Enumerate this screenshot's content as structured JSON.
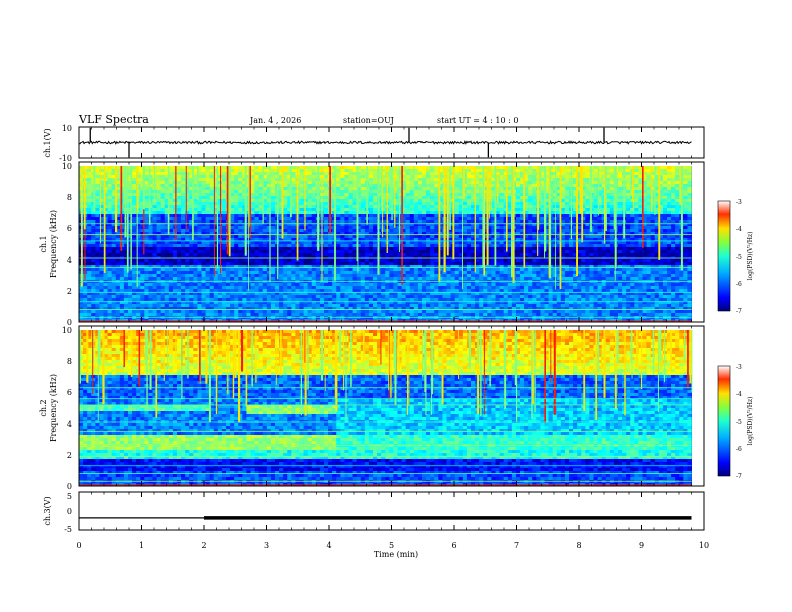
{
  "header": {
    "title": "VLF Spectra",
    "date": "Jan. 4 , 2026",
    "station": "station=OUJ",
    "start": "start UT =  4 : 10 : 0"
  },
  "chart_data": {
    "type": "heatmap",
    "title": "VLF Spectra",
    "xlabel": "Time (min)",
    "xlim": [
      0,
      10
    ],
    "x_ticks": [
      "0",
      "1",
      "2",
      "3",
      "4",
      "5",
      "6",
      "7",
      "8",
      "9",
      "10"
    ],
    "data_end_min": 9.8,
    "panels": [
      {
        "name": "ch1-waveform",
        "type": "line",
        "ylabel": "ch.1(V)",
        "ylim": [
          -10,
          10
        ],
        "y_ticks": [
          "10",
          "-10"
        ],
        "baseline": 0,
        "spikes_min": [
          0.18,
          0.8,
          5.28,
          6.55,
          8.4
        ]
      },
      {
        "name": "ch1-spectrogram",
        "type": "heatmap",
        "ylabel_line1": "ch.1",
        "ylabel_line2": "Frequency (kHz)",
        "ylim_khz": [
          0,
          10
        ],
        "y_ticks": [
          "0",
          "2",
          "4",
          "6",
          "8",
          "10"
        ],
        "colorbar_label": "log(PSD)(V²/Hz)",
        "colorbar_ticks": [
          "-3",
          "-4",
          "-5",
          "-6",
          "-7"
        ],
        "colorbar_range": [
          -7,
          -3
        ]
      },
      {
        "name": "ch2-spectrogram",
        "type": "heatmap",
        "ylabel_line1": "ch.2",
        "ylabel_line2": "Frequency (kHz)",
        "ylim_khz": [
          0,
          10
        ],
        "y_ticks": [
          "0",
          "2",
          "4",
          "6",
          "8",
          "10"
        ],
        "colorbar_label": "log(PSD)(V²/Hz)",
        "colorbar_ticks": [
          "-3",
          "-4",
          "-5",
          "-6",
          "-7"
        ],
        "colorbar_range": [
          -7,
          -3
        ],
        "bands": [
          {
            "t0": 0,
            "t1": 2.1,
            "f0": 4.8,
            "f1": 5.2,
            "level": -5.2
          },
          {
            "t0": 2.7,
            "t1": 4.1,
            "f0": 4.6,
            "f1": 5.2,
            "level": -4.9
          },
          {
            "t0": 0,
            "t1": 4.1,
            "f0": 2.3,
            "f1": 3.2,
            "level": -4.9
          },
          {
            "t0": 4.1,
            "t1": 9.8,
            "f0": 2.3,
            "f1": 3.3,
            "level": -5.3
          }
        ]
      },
      {
        "name": "ch3-waveform",
        "type": "line",
        "ylabel": "ch.3(V)",
        "ylim": [
          -5,
          5
        ],
        "y_ticks": [
          "5",
          "0",
          "-5"
        ],
        "segments": [
          {
            "t0": 0,
            "t1": 2.0,
            "value": -1.8,
            "style": "thin"
          },
          {
            "t0": 2.0,
            "t1": 9.8,
            "value": -1.8,
            "style": "thick"
          }
        ]
      }
    ]
  },
  "colors": {
    "background": "#ffffff",
    "axis": "#000000",
    "spectrogram_fill": "#1a2aa8"
  }
}
